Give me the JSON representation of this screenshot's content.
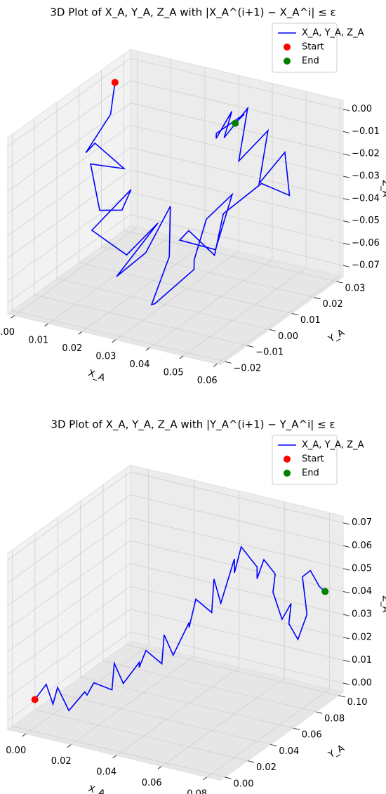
{
  "chart_data": [
    {
      "type": "line3d",
      "title": "3D Plot of X_A, Y_A, Z_A with |X_A^(i+1) − X_A^i| ≤ ε",
      "xlabel": "X_A",
      "ylabel": "Y_A",
      "zlabel": "Z_A",
      "xlim": [
        -0.002,
        0.061
      ],
      "ylim": [
        -0.022,
        0.033
      ],
      "zlim": [
        -0.075,
        0.004
      ],
      "xticks": [
        {
          "value": 0,
          "label": "0.00"
        },
        {
          "value": 0.01,
          "label": "0.01"
        },
        {
          "value": 0.02,
          "label": "0.02"
        },
        {
          "value": 0.03,
          "label": "0.03"
        },
        {
          "value": 0.04,
          "label": "0.04"
        },
        {
          "value": 0.05,
          "label": "0.05"
        },
        {
          "value": 0.06,
          "label": "0.06"
        }
      ],
      "yticks": [
        {
          "value": -0.02,
          "label": "−0.02"
        },
        {
          "value": -0.01,
          "label": "−0.01"
        },
        {
          "value": 0,
          "label": "0.00"
        },
        {
          "value": 0.01,
          "label": "0.01"
        },
        {
          "value": 0.02,
          "label": "0.02"
        },
        {
          "value": 0.03,
          "label": "0.03"
        }
      ],
      "zticks": [
        {
          "value": -0.07,
          "label": "−0.07"
        },
        {
          "value": -0.06,
          "label": "−0.06"
        },
        {
          "value": -0.05,
          "label": "−0.05"
        },
        {
          "value": -0.04,
          "label": "−0.04"
        },
        {
          "value": -0.03,
          "label": "−0.03"
        },
        {
          "value": -0.02,
          "label": "−0.02"
        },
        {
          "value": -0.01,
          "label": "−0.01"
        },
        {
          "value": 0,
          "label": "0.00"
        }
      ],
      "grid": true,
      "series": [
        {
          "name": "X_A, Y_A, Z_A",
          "color": "#0000ff",
          "x": [
            0.002,
            0.004,
            0.0,
            0.006,
            0.01,
            0.008,
            0.014,
            0.012,
            0.018,
            0.015,
            0.02,
            0.024,
            0.021,
            0.027,
            0.025,
            0.03,
            0.034,
            0.031,
            0.036,
            0.04,
            0.037,
            0.042,
            0.045,
            0.041,
            0.047,
            0.05,
            0.046,
            0.052,
            0.055,
            0.051,
            0.048,
            0.044,
            0.04,
            0.036,
            0.033,
            0.03,
            0.028,
            0.032,
            0.035,
            0.031
          ],
          "y": [
            0.02,
            0.015,
            0.01,
            0.005,
            0.012,
            0.0,
            -0.005,
            0.008,
            0.003,
            -0.01,
            -0.002,
            0.006,
            -0.008,
            -0.004,
            0.01,
            0.002,
            -0.012,
            -0.006,
            0.004,
            -0.002,
            0.008,
            0.012,
            0.0,
            -0.01,
            -0.015,
            -0.008,
            0.002,
            0.01,
            0.018,
            0.022,
            0.015,
            0.025,
            0.018,
            0.028,
            0.022,
            0.03,
            0.026,
            0.02,
            0.028,
            0.03
          ],
          "z": [
            0.0,
            -0.01,
            -0.025,
            -0.015,
            -0.03,
            -0.02,
            -0.035,
            -0.045,
            -0.03,
            -0.04,
            -0.055,
            -0.045,
            -0.06,
            -0.05,
            -0.04,
            -0.055,
            -0.065,
            -0.07,
            -0.06,
            -0.05,
            -0.04,
            -0.03,
            -0.045,
            -0.035,
            -0.025,
            -0.04,
            -0.03,
            -0.02,
            -0.03,
            -0.015,
            -0.025,
            -0.01,
            -0.02,
            -0.005,
            -0.015,
            -0.01,
            -0.02,
            -0.012,
            -0.008,
            -0.015
          ]
        }
      ],
      "markers": [
        {
          "name": "Start",
          "color": "#ff0000"
        },
        {
          "name": "End",
          "color": "#008000"
        }
      ]
    },
    {
      "type": "line3d",
      "title": "3D Plot of X_A, Y_A, Z_A with |Y_A^(i+1) − Y_A^i| ≤ ε",
      "xlabel": "X_A",
      "ylabel": "Y_A",
      "zlabel": "Z_A",
      "xlim": [
        -0.008,
        0.086
      ],
      "ylim": [
        -0.004,
        0.104
      ],
      "zlim": [
        -0.004,
        0.073
      ],
      "xticks": [
        {
          "value": 0,
          "label": "0.00"
        },
        {
          "value": 0.02,
          "label": "0.02"
        },
        {
          "value": 0.04,
          "label": "0.04"
        },
        {
          "value": 0.06,
          "label": "0.06"
        },
        {
          "value": 0.08,
          "label": "0.08"
        }
      ],
      "yticks": [
        {
          "value": 0,
          "label": "0.00"
        },
        {
          "value": 0.02,
          "label": "0.02"
        },
        {
          "value": 0.04,
          "label": "0.04"
        },
        {
          "value": 0.06,
          "label": "0.06"
        },
        {
          "value": 0.08,
          "label": "0.08"
        },
        {
          "value": 0.1,
          "label": "0.10"
        }
      ],
      "zticks": [
        {
          "value": 0,
          "label": "0.00"
        },
        {
          "value": 0.01,
          "label": "0.01"
        },
        {
          "value": 0.02,
          "label": "0.02"
        },
        {
          "value": 0.03,
          "label": "0.03"
        },
        {
          "value": 0.04,
          "label": "0.04"
        },
        {
          "value": 0.05,
          "label": "0.05"
        },
        {
          "value": 0.06,
          "label": "0.06"
        },
        {
          "value": 0.07,
          "label": "0.07"
        }
      ],
      "grid": true,
      "series": [
        {
          "name": "X_A, Y_A, Z_A",
          "color": "#0000ff",
          "x": [
            0.002,
            0.004,
            0.008,
            0.006,
            0.012,
            0.015,
            0.013,
            0.018,
            0.022,
            0.02,
            0.026,
            0.03,
            0.027,
            0.032,
            0.036,
            0.034,
            0.04,
            0.044,
            0.041,
            0.046,
            0.05,
            0.048,
            0.053,
            0.056,
            0.054,
            0.058,
            0.062,
            0.06,
            0.064,
            0.066,
            0.063,
            0.068,
            0.07,
            0.067,
            0.072,
            0.074,
            0.071,
            0.076,
            0.078,
            0.08
          ],
          "y": [
            0.0,
            0.006,
            0.004,
            0.012,
            0.01,
            0.018,
            0.024,
            0.02,
            0.028,
            0.034,
            0.03,
            0.036,
            0.042,
            0.038,
            0.044,
            0.05,
            0.046,
            0.052,
            0.058,
            0.054,
            0.06,
            0.066,
            0.062,
            0.068,
            0.072,
            0.07,
            0.076,
            0.08,
            0.078,
            0.084,
            0.088,
            0.086,
            0.09,
            0.094,
            0.092,
            0.096,
            0.098,
            0.095,
            0.099,
            0.1
          ],
          "z": [
            0.01,
            0.015,
            0.008,
            0.012,
            0.004,
            0.01,
            0.006,
            0.014,
            0.009,
            0.018,
            0.012,
            0.02,
            0.015,
            0.025,
            0.018,
            0.028,
            0.022,
            0.035,
            0.03,
            0.045,
            0.038,
            0.05,
            0.042,
            0.06,
            0.052,
            0.065,
            0.055,
            0.048,
            0.058,
            0.05,
            0.04,
            0.03,
            0.036,
            0.025,
            0.02,
            0.03,
            0.045,
            0.05,
            0.042,
            0.04
          ]
        }
      ],
      "markers": [
        {
          "name": "Start",
          "color": "#ff0000"
        },
        {
          "name": "End",
          "color": "#008000"
        }
      ]
    }
  ]
}
